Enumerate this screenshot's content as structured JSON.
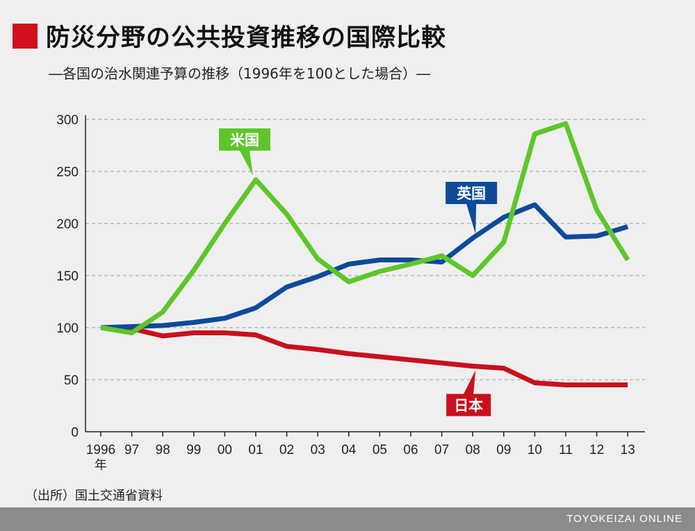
{
  "header": {
    "title": "防災分野の公共投資推移の国際比較",
    "subtitle": "―各国の治水関連予算の推移（1996年を100とした場合）―"
  },
  "colors": {
    "accent": "#d0101c",
    "usa": "#5ec62a",
    "uk": "#0e4a9a",
    "japan": "#c8101e"
  },
  "chart_data": {
    "type": "line",
    "x": [
      "1996",
      "97",
      "98",
      "99",
      "00",
      "01",
      "02",
      "03",
      "04",
      "05",
      "06",
      "07",
      "08",
      "09",
      "10",
      "11",
      "12",
      "13"
    ],
    "x_unit_label": "年",
    "ylim": [
      0,
      300
    ],
    "yticks": [
      0,
      50,
      100,
      150,
      200,
      250,
      300
    ],
    "grid": true,
    "series": [
      {
        "name": "米国",
        "color": "#5ec62a",
        "values": [
          100,
          95,
          115,
          155,
          200,
          242,
          209,
          166,
          144,
          154,
          161,
          169,
          150,
          182,
          286,
          296,
          213,
          165
        ]
      },
      {
        "name": "英国",
        "color": "#0e4a9a",
        "values": [
          100,
          101,
          102,
          105,
          109,
          119,
          139,
          149,
          161,
          165,
          165,
          163,
          186,
          206,
          218,
          187,
          188,
          197
        ]
      },
      {
        "name": "日本",
        "color": "#c8101e",
        "values": [
          100,
          99,
          92,
          95,
          95,
          93,
          82,
          79,
          75,
          72,
          69,
          66,
          63,
          61,
          47,
          45,
          45,
          45
        ]
      }
    ]
  },
  "source": "（出所）国土交通省資料",
  "footer": {
    "brand": "TOYOKEIZAI ONLINE"
  }
}
